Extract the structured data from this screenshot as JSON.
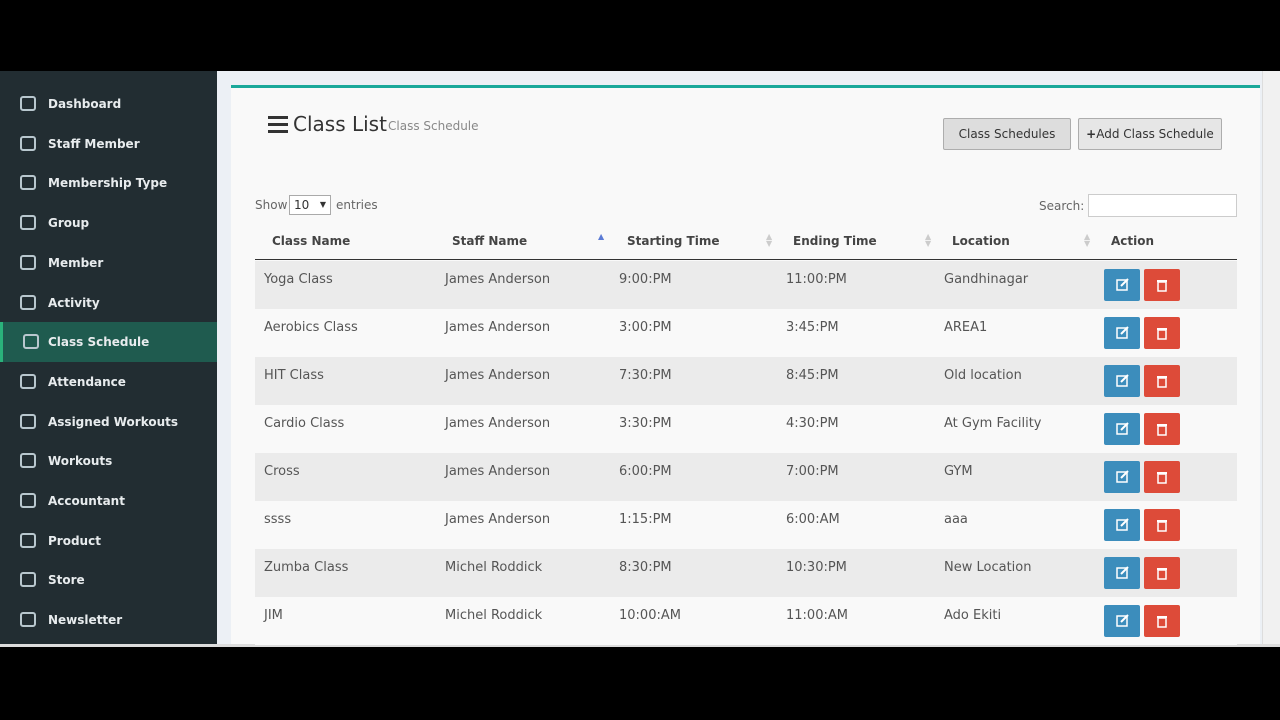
{
  "sidebar": {
    "items": [
      "Dashboard",
      "Staff Member",
      "Membership Type",
      "Group",
      "Member",
      "Activity",
      "Class Schedule",
      "Attendance",
      "Assigned Workouts",
      "Workouts",
      "Accountant",
      "Product",
      "Store",
      "Newsletter"
    ]
  },
  "header": {
    "title": "Class List",
    "subtitle": "Class Schedule"
  },
  "buttons": [
    "Class Schedules",
    "Add Class Schedule"
  ],
  "controls": {
    "show": "Show",
    "entries_value": "10",
    "entries": "entries",
    "search": "Search:"
  },
  "table": {
    "columns": [
      "Class Name",
      "Staff Name",
      "Starting Time",
      "Ending Time",
      "Location",
      "Action"
    ],
    "rows": [
      [
        "Yoga Class",
        "James Anderson",
        "9:00:PM",
        "11:00:PM",
        "Gandhinagar"
      ],
      [
        "Aerobics Class",
        "James Anderson",
        "3:00:PM",
        "3:45:PM",
        "AREA1"
      ],
      [
        "HIT Class",
        "James Anderson",
        "7:30:PM",
        "8:45:PM",
        "Old location"
      ],
      [
        "Cardio Class",
        "James Anderson",
        "3:30:PM",
        "4:30:PM",
        "At Gym Facility"
      ],
      [
        "Cross",
        "James Anderson",
        "6:00:PM",
        "7:00:PM",
        "GYM"
      ],
      [
        "ssss",
        "James Anderson",
        "1:15:PM",
        "6:00:AM",
        "aaa"
      ],
      [
        "Zumba Class",
        "Michel Roddick",
        "8:30:PM",
        "10:30:PM",
        "New Location"
      ],
      [
        "JIM",
        "Michel Roddick",
        "10:00:AM",
        "11:00:AM",
        "Ado Ekiti"
      ]
    ]
  }
}
